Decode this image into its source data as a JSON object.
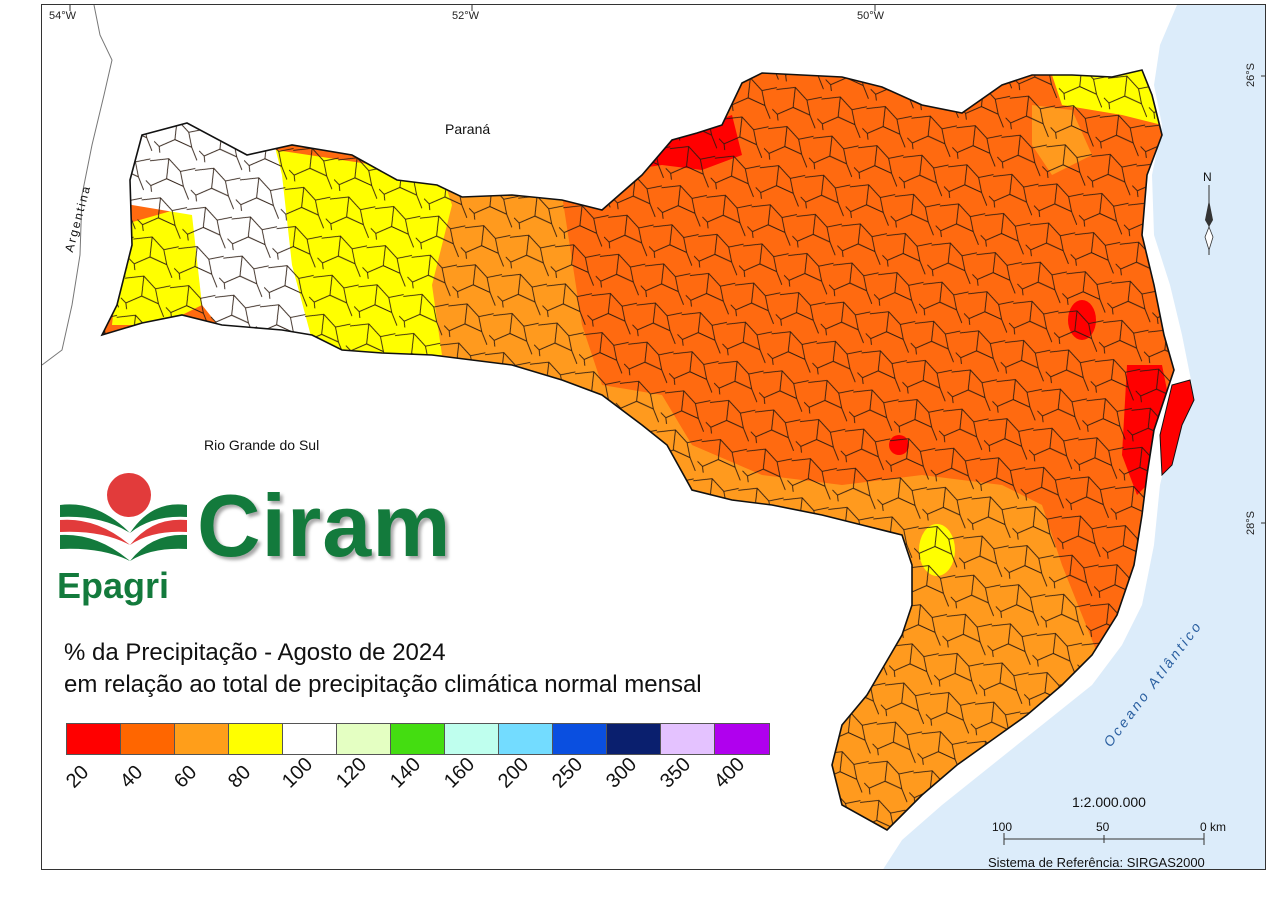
{
  "coords": {
    "lon": [
      "54°W",
      "52°W",
      "50°W"
    ],
    "lat": [
      "26°S",
      "28°S"
    ]
  },
  "places": {
    "parana": "Paraná",
    "rio_grande_do_sul": "Rio Grande do Sul",
    "argentina": "Argentina",
    "ocean": "Oceano Atlântico"
  },
  "logo": {
    "ciram": "Ciram",
    "epagri": "Epagri"
  },
  "title": {
    "line1": "% da Precipitação - Agosto de 2024",
    "line2": "em relação ao total de precipitação climática normal mensal"
  },
  "legend": {
    "colors": [
      "#ff0000",
      "#ff6600",
      "#ff9e1a",
      "#ffff00",
      "#ffffff",
      "#e4ffc2",
      "#44dd11",
      "#bfffee",
      "#73dcff",
      "#0a4fe0",
      "#0a1f6e",
      "#e4c2ff",
      "#b000ee"
    ],
    "ticks": [
      "20",
      "40",
      "60",
      "80",
      "100",
      "120",
      "140",
      "160",
      "200",
      "250",
      "300",
      "350",
      "400"
    ]
  },
  "scale": {
    "ratio": "1:2.000.000",
    "labels": [
      "100",
      "50",
      "0 km"
    ]
  },
  "reference": "Sistema de Referência: SIRGAS2000",
  "north": "N"
}
